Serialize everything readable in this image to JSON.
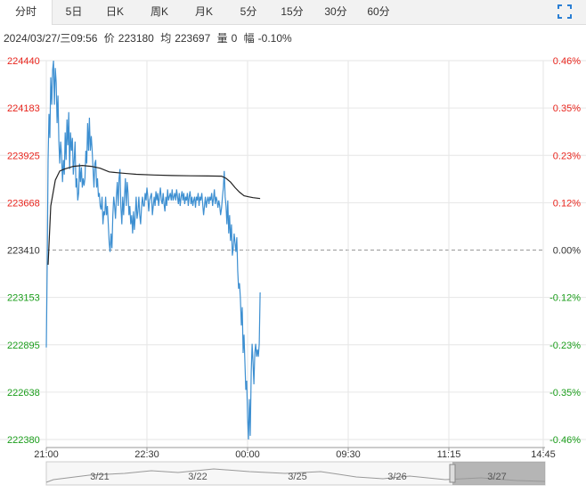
{
  "tabs": [
    {
      "label": "分时",
      "active": true
    },
    {
      "label": "5日",
      "active": false
    },
    {
      "label": "日K",
      "active": false
    },
    {
      "label": "周K",
      "active": false
    },
    {
      "label": "月K",
      "active": false
    },
    {
      "label": "5分",
      "active": false
    },
    {
      "label": "15分",
      "active": false
    },
    {
      "label": "30分",
      "active": false
    },
    {
      "label": "60分",
      "active": false
    }
  ],
  "info": {
    "datetime": "2024/03/27/三09:56",
    "price_label": "价",
    "price": "223180",
    "avg_label": "均",
    "avg": "223697",
    "vol_label": "量",
    "vol": "0",
    "chg_label": "幅",
    "chg": "-0.10%"
  },
  "colors": {
    "up": "#e8251d",
    "down": "#1a9d1a",
    "price_line": "#3d8fd1",
    "avg_line": "#222222",
    "grid": "#e6e6e6"
  },
  "chart_data": {
    "type": "line",
    "prev_close": 223410,
    "ylim": [
      222380,
      224440
    ],
    "y_ticks_left": [
      "224440",
      "224183",
      "223925",
      "223668",
      "223410",
      "223153",
      "222895",
      "222638",
      "222380"
    ],
    "y_ticks_right": [
      "0.46%",
      "0.35%",
      "0.23%",
      "0.12%",
      "0.00%",
      "-0.12%",
      "-0.23%",
      "-0.35%",
      "-0.46%"
    ],
    "x_ticks": [
      "21:00",
      "22:30",
      "00:00",
      "09:30",
      "11:15",
      "14:45"
    ],
    "session_minutes": 555,
    "series": [
      {
        "name": "price",
        "values": [
          [
            0,
            222880
          ],
          [
            1,
            223320
          ],
          [
            2,
            223900
          ],
          [
            3,
            224150
          ],
          [
            4,
            224020
          ],
          [
            5,
            224350
          ],
          [
            6,
            224200
          ],
          [
            7,
            224390
          ],
          [
            8,
            224440
          ],
          [
            9,
            224200
          ],
          [
            10,
            224400
          ],
          [
            11,
            224320
          ],
          [
            12,
            224100
          ],
          [
            13,
            224250
          ],
          [
            14,
            224000
          ],
          [
            15,
            223880
          ],
          [
            16,
            224000
          ],
          [
            17,
            223920
          ],
          [
            18,
            223780
          ],
          [
            19,
            223900
          ],
          [
            20,
            223820
          ],
          [
            21,
            224050
          ],
          [
            22,
            223900
          ],
          [
            23,
            224120
          ],
          [
            24,
            223980
          ],
          [
            25,
            224160
          ],
          [
            26,
            223850
          ],
          [
            27,
            224050
          ],
          [
            28,
            223950
          ],
          [
            29,
            224020
          ],
          [
            30,
            223820
          ],
          [
            31,
            223900
          ],
          [
            32,
            224000
          ],
          [
            33,
            223750
          ],
          [
            34,
            223800
          ],
          [
            35,
            223680
          ],
          [
            36,
            223720
          ],
          [
            37,
            223880
          ],
          [
            38,
            223780
          ],
          [
            39,
            223860
          ],
          [
            40,
            223750
          ],
          [
            41,
            223800
          ],
          [
            42,
            223760
          ],
          [
            43,
            223800
          ],
          [
            44,
            223950
          ],
          [
            45,
            223880
          ],
          [
            46,
            224100
          ],
          [
            47,
            223950
          ],
          [
            48,
            224130
          ],
          [
            49,
            223950
          ],
          [
            50,
            224030
          ],
          [
            51,
            223950
          ],
          [
            52,
            223850
          ],
          [
            53,
            223750
          ],
          [
            54,
            223880
          ],
          [
            55,
            223900
          ],
          [
            56,
            223750
          ],
          [
            57,
            223800
          ],
          [
            58,
            223700
          ],
          [
            59,
            223720
          ],
          [
            60,
            223650
          ],
          [
            61,
            223630
          ],
          [
            62,
            223700
          ],
          [
            63,
            223550
          ],
          [
            64,
            223620
          ],
          [
            65,
            223600
          ],
          [
            66,
            223700
          ],
          [
            67,
            223600
          ],
          [
            68,
            223650
          ],
          [
            69,
            223550
          ],
          [
            70,
            223450
          ],
          [
            71,
            223400
          ],
          [
            72,
            223500
          ],
          [
            73,
            223420
          ],
          [
            74,
            223600
          ],
          [
            75,
            223700
          ],
          [
            76,
            223650
          ],
          [
            77,
            223580
          ],
          [
            78,
            223700
          ],
          [
            79,
            223780
          ],
          [
            80,
            223650
          ],
          [
            81,
            223800
          ],
          [
            82,
            223850
          ],
          [
            83,
            223650
          ],
          [
            84,
            223550
          ],
          [
            85,
            223700
          ],
          [
            86,
            223600
          ],
          [
            87,
            223700
          ],
          [
            88,
            223800
          ],
          [
            89,
            223650
          ],
          [
            90,
            223780
          ],
          [
            91,
            223720
          ],
          [
            92,
            223600
          ],
          [
            93,
            223650
          ],
          [
            94,
            223550
          ],
          [
            95,
            223600
          ],
          [
            96,
            223500
          ],
          [
            97,
            223620
          ],
          [
            98,
            223520
          ],
          [
            99,
            223600
          ],
          [
            100,
            223700
          ],
          [
            101,
            223580
          ],
          [
            102,
            223620
          ],
          [
            103,
            223700
          ],
          [
            104,
            223600
          ],
          [
            105,
            223550
          ],
          [
            106,
            223650
          ],
          [
            107,
            223700
          ],
          [
            108,
            223650
          ],
          [
            109,
            223650
          ],
          [
            110,
            223720
          ],
          [
            111,
            223680
          ],
          [
            112,
            223750
          ],
          [
            113,
            223700
          ],
          [
            114,
            223620
          ],
          [
            115,
            223680
          ],
          [
            116,
            223700
          ],
          [
            117,
            223720
          ],
          [
            118,
            223600
          ],
          [
            119,
            223650
          ],
          [
            120,
            223700
          ],
          [
            121,
            223650
          ],
          [
            122,
            223730
          ],
          [
            123,
            223680
          ],
          [
            124,
            223720
          ],
          [
            125,
            223650
          ],
          [
            126,
            223700
          ],
          [
            127,
            223750
          ],
          [
            128,
            223680
          ],
          [
            129,
            223660
          ],
          [
            130,
            223720
          ],
          [
            131,
            223660
          ],
          [
            132,
            223620
          ],
          [
            133,
            223700
          ],
          [
            134,
            223650
          ],
          [
            135,
            223740
          ],
          [
            136,
            223680
          ],
          [
            137,
            223700
          ],
          [
            138,
            223720
          ],
          [
            139,
            223680
          ],
          [
            140,
            223740
          ],
          [
            141,
            223680
          ],
          [
            142,
            223700
          ],
          [
            143,
            223720
          ],
          [
            144,
            223680
          ],
          [
            145,
            223740
          ],
          [
            146,
            223700
          ],
          [
            147,
            223660
          ],
          [
            148,
            223720
          ],
          [
            149,
            223650
          ],
          [
            150,
            223700
          ],
          [
            151,
            223730
          ],
          [
            152,
            223680
          ],
          [
            153,
            223720
          ],
          [
            154,
            223660
          ],
          [
            155,
            223700
          ],
          [
            156,
            223680
          ],
          [
            157,
            223720
          ],
          [
            158,
            223650
          ],
          [
            159,
            223700
          ],
          [
            160,
            223730
          ],
          [
            161,
            223660
          ],
          [
            162,
            223700
          ],
          [
            163,
            223650
          ],
          [
            164,
            223680
          ],
          [
            165,
            223700
          ],
          [
            166,
            223640
          ],
          [
            167,
            223700
          ],
          [
            168,
            223680
          ],
          [
            169,
            223720
          ],
          [
            170,
            223650
          ],
          [
            171,
            223700
          ],
          [
            172,
            223680
          ],
          [
            173,
            223720
          ],
          [
            174,
            223660
          ],
          [
            175,
            223600
          ],
          [
            176,
            223650
          ],
          [
            177,
            223700
          ],
          [
            178,
            223640
          ],
          [
            179,
            223680
          ],
          [
            180,
            223700
          ],
          [
            181,
            223660
          ],
          [
            182,
            223700
          ],
          [
            183,
            223680
          ],
          [
            184,
            223720
          ],
          [
            185,
            223650
          ],
          [
            186,
            223690
          ],
          [
            187,
            223740
          ],
          [
            188,
            223660
          ],
          [
            189,
            223700
          ],
          [
            190,
            223680
          ],
          [
            191,
            223640
          ],
          [
            192,
            223680
          ],
          [
            193,
            223650
          ],
          [
            194,
            223600
          ],
          [
            195,
            223640
          ],
          [
            196,
            223700
          ],
          [
            197,
            223750
          ],
          [
            198,
            223840
          ],
          [
            199,
            223700
          ],
          [
            200,
            223650
          ],
          [
            201,
            223550
          ],
          [
            202,
            223680
          ],
          [
            203,
            223500
          ],
          [
            204,
            223600
          ],
          [
            205,
            223460
          ],
          [
            206,
            223550
          ],
          [
            207,
            223380
          ],
          [
            208,
            223420
          ],
          [
            209,
            223500
          ],
          [
            210,
            223450
          ],
          [
            211,
            223400
          ],
          [
            212,
            223480
          ],
          [
            213,
            223300
          ],
          [
            214,
            223200
          ],
          [
            215,
            223230
          ],
          [
            216,
            223150
          ],
          [
            217,
            223000
          ],
          [
            218,
            223100
          ],
          [
            219,
            222850
          ],
          [
            220,
            222950
          ],
          [
            221,
            222800
          ],
          [
            222,
            222650
          ],
          [
            223,
            222700
          ],
          [
            224,
            222500
          ],
          [
            225,
            222380
          ],
          [
            226,
            222600
          ],
          [
            227,
            222400
          ],
          [
            228,
            222750
          ],
          [
            229,
            222900
          ],
          [
            230,
            222800
          ],
          [
            231,
            222680
          ],
          [
            232,
            222850
          ],
          [
            233,
            222900
          ],
          [
            234,
            222830
          ],
          [
            235,
            222870
          ],
          [
            236,
            222830
          ],
          [
            237,
            222900
          ],
          [
            238,
            223180
          ]
        ]
      },
      {
        "name": "avg",
        "values": [
          [
            2,
            223330
          ],
          [
            5,
            223650
          ],
          [
            10,
            223790
          ],
          [
            15,
            223840
          ],
          [
            20,
            223850
          ],
          [
            30,
            223865
          ],
          [
            40,
            223870
          ],
          [
            50,
            223865
          ],
          [
            60,
            223855
          ],
          [
            70,
            223835
          ],
          [
            80,
            223830
          ],
          [
            90,
            223826
          ],
          [
            100,
            223822
          ],
          [
            120,
            223818
          ],
          [
            140,
            223815
          ],
          [
            160,
            223814
          ],
          [
            180,
            223813
          ],
          [
            195,
            223812
          ],
          [
            200,
            223800
          ],
          [
            205,
            223780
          ],
          [
            210,
            223750
          ],
          [
            215,
            223725
          ],
          [
            220,
            223705
          ],
          [
            225,
            223700
          ],
          [
            230,
            223695
          ],
          [
            238,
            223690
          ]
        ]
      }
    ],
    "navigator": {
      "labels": [
        "3/21",
        "3/22",
        "3/25",
        "3/26",
        "3/27"
      ],
      "axis_labels": [
        "21:00",
        "22:30",
        "00:00",
        "09:30",
        "11:15",
        "14:45"
      ]
    }
  }
}
